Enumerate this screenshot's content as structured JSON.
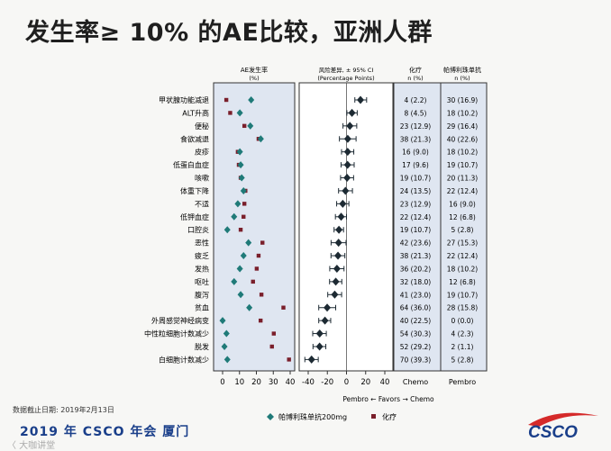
{
  "title": "发生率≥ 10% 的AE比较，亚洲人群",
  "footer": {
    "date_label": "数据截止日期: 2019年2月13日",
    "conference": "2019 年 CSCO 年会  厦门",
    "watermark": "〈 大咖讲堂"
  },
  "logo_text": "CSCO",
  "colors": {
    "pembro": "#1f7a78",
    "chemo": "#7a1f2b",
    "diamond": "#1d2a33",
    "panel": "#dfe6f1",
    "accent": "#1a3f8a",
    "logo_red": "#d52a2a"
  },
  "chart_data": {
    "type": "forest",
    "categories": [
      "甲状腺功能减退",
      "ALT升高",
      "便秘",
      "食欲减退",
      "皮疹",
      "低蛋白血症",
      "咳嗽",
      "体重下降",
      "不适",
      "低钾血症",
      "口腔炎",
      "恶性",
      "疲乏",
      "发热",
      "呕吐",
      "腹泻",
      "贫血",
      "外周感觉神经病变",
      "中性粒细胞计数减少",
      "脱发",
      "白细胞计数减少"
    ],
    "panels": [
      {
        "header": [
          "AE发生率",
          "(%)"
        ],
        "xlim": [
          0,
          45
        ],
        "ticks": [
          0,
          10,
          20,
          30,
          40
        ],
        "series": [
          {
            "name": "帕博利珠单抗200mg",
            "marker": "diamond",
            "values": [
              16.9,
              10.2,
              16.4,
              22.6,
              10.2,
              10.7,
              11.3,
              12.4,
              9.0,
              6.8,
              2.8,
              15.3,
              12.4,
              10.2,
              6.8,
              10.7,
              15.8,
              0.0,
              2.3,
              1.1,
              2.8
            ]
          },
          {
            "name": "化疗",
            "marker": "square",
            "values": [
              2.2,
              4.5,
              12.9,
              21.3,
              9.0,
              9.6,
              10.7,
              13.5,
              12.9,
              12.4,
              10.7,
              23.6,
              21.3,
              20.2,
              18.0,
              23.0,
              36.0,
              22.5,
              30.3,
              29.2,
              39.3
            ]
          }
        ]
      },
      {
        "header": [
          "风险差异, ± 95% CI",
          "(Percentage Points)"
        ],
        "xlim": [
          -45,
          45
        ],
        "ticks": [
          -40,
          -20,
          0,
          20,
          40
        ],
        "point": [
          14.6,
          5.7,
          3.5,
          1.3,
          1.2,
          1.1,
          0.6,
          -1.1,
          -3.9,
          -5.6,
          -7.9,
          -8.3,
          -8.9,
          -10.0,
          -11.2,
          -12.3,
          -20.2,
          -22.5,
          -28.0,
          -28.1,
          -36.5
        ],
        "ci_low": [
          8.7,
          0.4,
          -3.7,
          -7.4,
          -5.2,
          -5.7,
          -6.2,
          -8.3,
          -10.3,
          -11.6,
          -13.0,
          -16.1,
          -16.2,
          -17.5,
          -17.7,
          -19.6,
          -29.0,
          -29.0,
          -35.3,
          -35.0,
          -43.5
        ],
        "ci_high": [
          21.0,
          11.2,
          10.7,
          10.0,
          7.6,
          8.0,
          7.4,
          6.2,
          2.5,
          0.0,
          -3.1,
          -0.5,
          -1.7,
          -2.6,
          -4.9,
          -5.1,
          -11.3,
          -16.5,
          -21.1,
          -21.6,
          -29.5
        ],
        "xlabel": "Pembro ← Favors → Chemo"
      }
    ],
    "table": {
      "headers": [
        [
          "化疗",
          "n (%)"
        ],
        [
          "帕博利珠单抗",
          "n (%)"
        ]
      ],
      "footers": [
        "Chemo",
        "Pembro"
      ],
      "chemo": [
        "4 (2.2)",
        "8 (4.5)",
        "23 (12.9)",
        "38 (21.3)",
        "16 (9.0)",
        "17 (9.6)",
        "19 (10.7)",
        "24 (13.5)",
        "23 (12.9)",
        "22 (12.4)",
        "19 (10.7)",
        "42 (23.6)",
        "38 (21.3)",
        "36 (20.2)",
        "32 (18.0)",
        "41 (23.0)",
        "64 (36.0)",
        "40 (22.5)",
        "54 (30.3)",
        "52 (29.2)",
        "70 (39.3)"
      ],
      "pembro": [
        "30 (16.9)",
        "18 (10.2)",
        "29 (16.4)",
        "40 (22.6)",
        "18 (10.2)",
        "19 (10.7)",
        "20 (11.3)",
        "22 (12.4)",
        "16 (9.0)",
        "12 (6.8)",
        "5 (2.8)",
        "27 (15.3)",
        "22 (12.4)",
        "18 (10.2)",
        "12 (6.8)",
        "19 (10.7)",
        "28 (15.8)",
        "0 (0.0)",
        "4 (2.3)",
        "2 (1.1)",
        "5 (2.8)"
      ]
    },
    "legend": [
      {
        "name": "帕博利珠单抗200mg",
        "marker": "diamond"
      },
      {
        "name": "化疗",
        "marker": "square"
      }
    ]
  }
}
